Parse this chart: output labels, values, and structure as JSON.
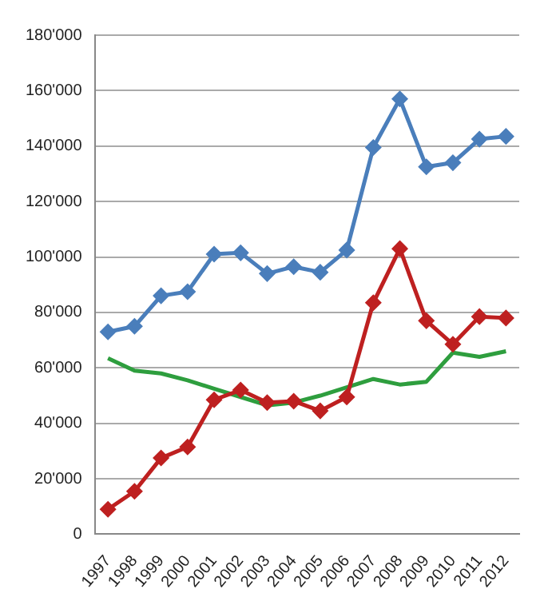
{
  "chart_data": {
    "type": "line",
    "categories": [
      "1997",
      "1998",
      "1999",
      "2000",
      "2001",
      "2002",
      "2003",
      "2004",
      "2005",
      "2006",
      "2007",
      "2008",
      "2009",
      "2010",
      "2011",
      "2012"
    ],
    "series": [
      {
        "color": "#4a7ebb",
        "marker": "diamond",
        "values": [
          73000,
          75000,
          86000,
          87500,
          101000,
          101500,
          94000,
          96500,
          94500,
          102500,
          139500,
          157000,
          132500,
          134000,
          142500,
          143500
        ]
      },
      {
        "color": "#be2020",
        "marker": "diamond",
        "values": [
          9000,
          15500,
          27500,
          31500,
          48500,
          52000,
          47500,
          48000,
          44500,
          49500,
          83500,
          103000,
          77000,
          68500,
          78500,
          78000
        ]
      },
      {
        "color": "#2e9e3e",
        "marker": "none",
        "values": [
          63500,
          59000,
          58000,
          55500,
          52500,
          49500,
          46500,
          47500,
          50000,
          53000,
          56000,
          54000,
          55000,
          65500,
          64000,
          66000
        ]
      }
    ],
    "ylim": [
      0,
      180000
    ],
    "yticks": [
      0,
      {
        "value": 20000,
        "label": "20'000"
      },
      {
        "value": 40000,
        "label": "40'000"
      },
      {
        "value": 60000,
        "label": "60'000"
      },
      {
        "value": 80000,
        "label": "80'000"
      },
      {
        "value": 100000,
        "label": "100'000"
      },
      {
        "value": 120000,
        "label": "120'000"
      },
      {
        "value": 140000,
        "label": "140'000"
      },
      {
        "value": 160000,
        "label": "160'000"
      },
      {
        "value": 180000,
        "label": "180'000"
      }
    ],
    "grid": "y",
    "legend": false
  }
}
